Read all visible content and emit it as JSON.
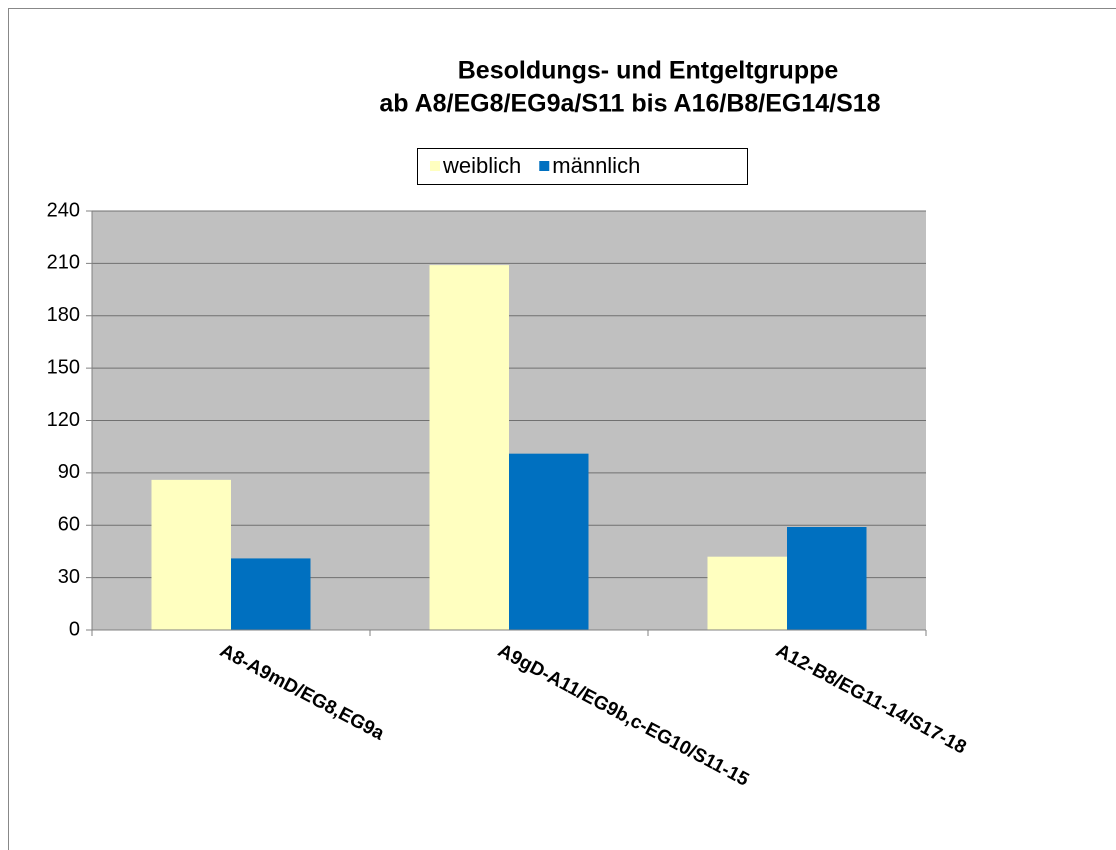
{
  "chart_data": {
    "type": "bar",
    "title": "Besoldungs- und Entgeltgruppe",
    "subtitle": "ab A8/EG8/EG9a/S11 bis A16/B8/EG14/S18",
    "categories": [
      "A8-A9mD/EG8,EG9a",
      "A9gD-A11/EG9b,c-EG10/S11-15",
      "A12-B8/EG11-14/S17-18"
    ],
    "series": [
      {
        "name": "weiblich",
        "color": "#ffffc0",
        "values": [
          86,
          209,
          42
        ]
      },
      {
        "name": "männlich",
        "color": "#0070c0",
        "values": [
          41,
          101,
          59
        ]
      }
    ],
    "ylim": [
      0,
      240
    ],
    "yticks": [
      0,
      30,
      60,
      90,
      120,
      150,
      180,
      210,
      240
    ],
    "grid": true,
    "legend": "top"
  }
}
